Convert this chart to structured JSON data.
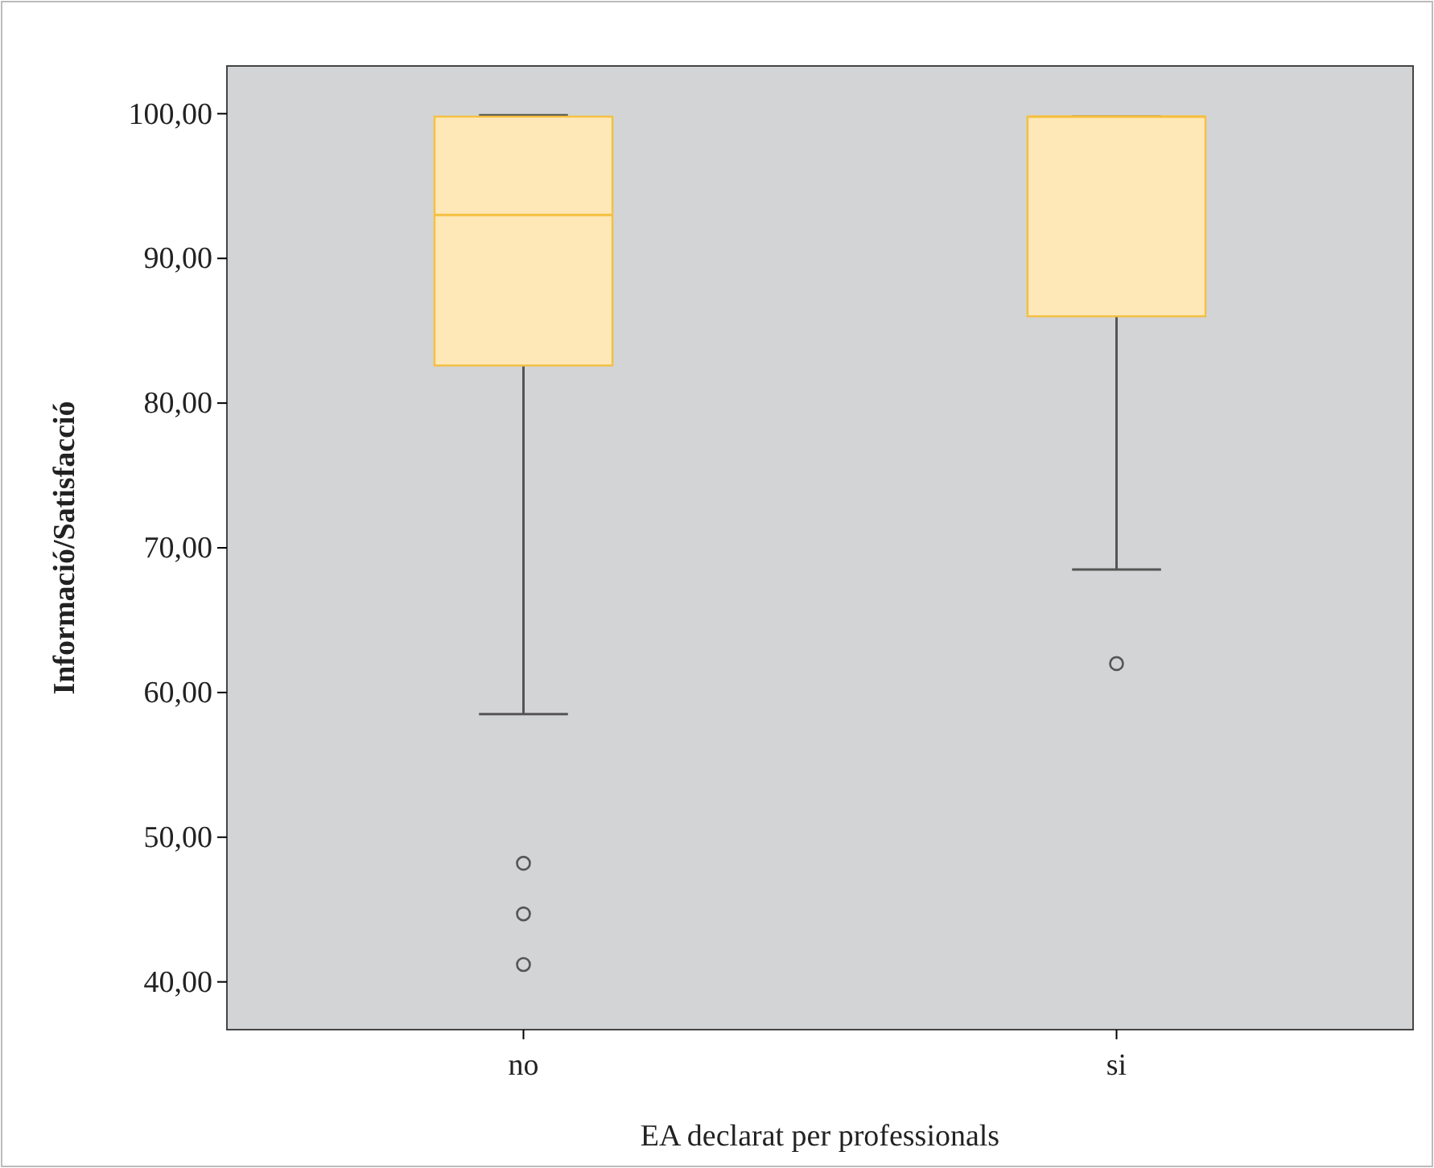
{
  "chart_data": {
    "type": "box",
    "xlabel": "EA declarat per professionals",
    "ylabel": "Informació/Satisfacció",
    "categories": [
      "no",
      "si"
    ],
    "boxes": [
      {
        "low": 58.5,
        "q1": 82.6,
        "median": 93.0,
        "q3": 99.8,
        "high": 99.9,
        "outliers": [
          48.2,
          44.7,
          41.2
        ]
      },
      {
        "low": 68.5,
        "q1": 86.0,
        "median": 99.8,
        "q3": 99.8,
        "high": 99.8,
        "outliers": [
          62.0
        ]
      }
    ],
    "color": "#fee8b8",
    "ylim": [
      36.7,
      103.3
    ],
    "yticks": [
      {
        "value": 40,
        "label": "40,00"
      },
      {
        "value": 50,
        "label": "50,00"
      },
      {
        "value": 60,
        "label": "60,00"
      },
      {
        "value": 70,
        "label": "70,00"
      },
      {
        "value": 80,
        "label": "80,00"
      },
      {
        "value": 90,
        "label": "90,00"
      },
      {
        "value": 100,
        "label": "100,00"
      }
    ]
  }
}
